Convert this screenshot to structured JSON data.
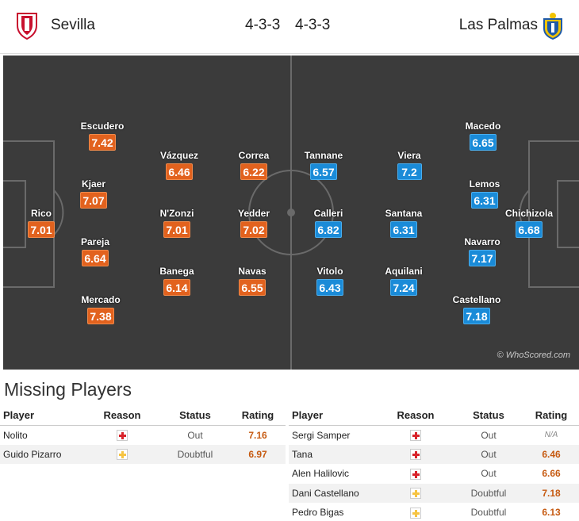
{
  "header": {
    "home_team": "Sevilla",
    "home_formation": "4-3-3",
    "away_formation": "4-3-3",
    "away_team": "Las Palmas",
    "home_color": "#e2621e",
    "away_color": "#1a8bd8"
  },
  "pitch": {
    "watermark": "© WhoScored.com",
    "home_players": [
      {
        "name": "Rico",
        "rating": "7.01"
      },
      {
        "name": "Escudero",
        "rating": "7.42"
      },
      {
        "name": "Kjaer",
        "rating": "7.07"
      },
      {
        "name": "Pareja",
        "rating": "6.64"
      },
      {
        "name": "Mercado",
        "rating": "7.38"
      },
      {
        "name": "Vázquez",
        "rating": "6.46"
      },
      {
        "name": "N'Zonzi",
        "rating": "7.01"
      },
      {
        "name": "Banega",
        "rating": "6.14"
      },
      {
        "name": "Correa",
        "rating": "6.22"
      },
      {
        "name": "Yedder",
        "rating": "7.02"
      },
      {
        "name": "Navas",
        "rating": "6.55"
      }
    ],
    "away_players": [
      {
        "name": "Tannane",
        "rating": "6.57"
      },
      {
        "name": "Calleri",
        "rating": "6.82"
      },
      {
        "name": "Vitolo",
        "rating": "6.43"
      },
      {
        "name": "Viera",
        "rating": "7.2"
      },
      {
        "name": "Santana",
        "rating": "6.31"
      },
      {
        "name": "Aquilani",
        "rating": "7.24"
      },
      {
        "name": "Macedo",
        "rating": "6.65"
      },
      {
        "name": "Lemos",
        "rating": "6.31"
      },
      {
        "name": "Navarro",
        "rating": "7.17"
      },
      {
        "name": "Castellano",
        "rating": "7.18"
      },
      {
        "name": "Chichizola",
        "rating": "6.68"
      }
    ]
  },
  "missing": {
    "title": "Missing Players",
    "columns": {
      "player": "Player",
      "reason": "Reason",
      "status": "Status",
      "rating": "Rating"
    },
    "home": [
      {
        "player": "Nolito",
        "reason": "injury",
        "status": "Out",
        "rating": "7.16"
      },
      {
        "player": "Guido Pizarro",
        "reason": "doubtful",
        "status": "Doubtful",
        "rating": "6.97"
      }
    ],
    "away": [
      {
        "player": "Sergi Samper",
        "reason": "injury",
        "status": "Out",
        "rating": "N/A"
      },
      {
        "player": "Tana",
        "reason": "injury",
        "status": "Out",
        "rating": "6.46"
      },
      {
        "player": "Alen Halilovic",
        "reason": "injury",
        "status": "Out",
        "rating": "6.66"
      },
      {
        "player": "Dani Castellano",
        "reason": "doubtful",
        "status": "Doubtful",
        "rating": "7.18"
      },
      {
        "player": "Pedro Bigas",
        "reason": "doubtful",
        "status": "Doubtful",
        "rating": "6.13"
      }
    ]
  }
}
